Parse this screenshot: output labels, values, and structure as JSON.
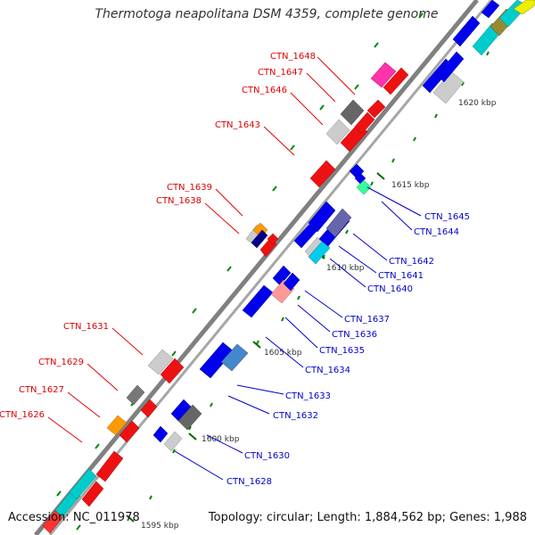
{
  "title": "Thermotoga neapolitana DSM 4359, complete genome",
  "footer": {
    "accession": "Accession: NC_011978",
    "summary": "Topology: circular; Length: 1,884,562 bp; Genes: 1,988"
  },
  "kbp_labels": [
    "1595 kbp",
    "1600 kbp",
    "1605 kbp",
    "1610 kbp",
    "1615 kbp",
    "1620 kbp"
  ],
  "left_labels": [
    "CTN_1648",
    "CTN_1647",
    "CTN_1646",
    "CTN_1643",
    "CTN_1639",
    "CTN_1638",
    "CTN_1631",
    "CTN_1629",
    "CTN_1627",
    "CTN_1626"
  ],
  "right_labels": [
    "CTN_1645",
    "CTN_1644",
    "CTN_1642",
    "CTN_1641",
    "CTN_1640",
    "CTN_1637",
    "CTN_1636",
    "CTN_1635",
    "CTN_1634",
    "CTN_1633",
    "CTN_1632",
    "CTN_1630",
    "CTN_1628"
  ],
  "colors": {
    "forward_gene": "#ff0000",
    "reverse_gene": "#0000ff",
    "label_forward": "#dd0000",
    "label_reverse": "#0000cc",
    "axis": "#999999",
    "tick": "#008800",
    "cyan": "#00cccc",
    "grey": "#888888",
    "magenta": "#ff33aa",
    "orange": "#ff9900"
  }
}
